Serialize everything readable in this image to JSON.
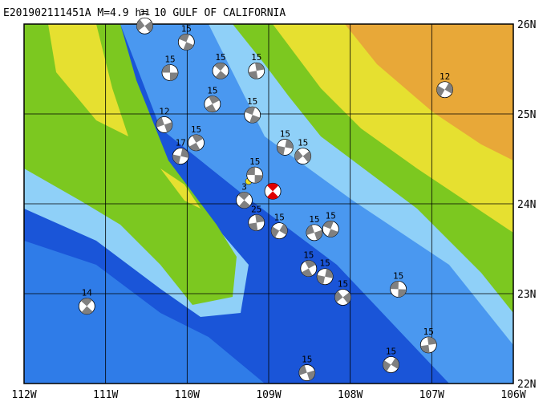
{
  "title": "E201902111451A M=4.9 h= 10 GULF OF CALIFORNIA",
  "longitude_labels": [
    "112W",
    "111W",
    "110W",
    "109W",
    "108W",
    "107W",
    "106W"
  ],
  "latitude_labels": [
    "26N",
    "25N",
    "24N",
    "23N",
    "22N"
  ],
  "main_event": {
    "lon": -108.95,
    "lat": 24.14
  },
  "events": [
    {
      "lon": -110.21,
      "lat": 25.46,
      "depth_label": "15"
    },
    {
      "lon": -109.59,
      "lat": 25.48,
      "depth_label": "15"
    },
    {
      "lon": -109.15,
      "lat": 25.48,
      "depth_label": "15"
    },
    {
      "lon": -106.84,
      "lat": 25.27,
      "depth_label": "12"
    },
    {
      "lon": -110.28,
      "lat": 24.88,
      "depth_label": "12"
    },
    {
      "lon": -109.2,
      "lat": 24.99,
      "depth_label": "15"
    },
    {
      "lon": -109.89,
      "lat": 24.68,
      "depth_label": "15"
    },
    {
      "lon": -108.8,
      "lat": 24.63,
      "depth_label": "15"
    },
    {
      "lon": -108.58,
      "lat": 24.53,
      "depth_label": "15"
    },
    {
      "lon": -109.17,
      "lat": 24.32,
      "depth_label": "15"
    },
    {
      "lon": -109.3,
      "lat": 24.04,
      "depth_label": "3"
    },
    {
      "lon": -109.15,
      "lat": 23.79,
      "depth_label": "25"
    },
    {
      "lon": -108.87,
      "lat": 23.7,
      "depth_label": "15"
    },
    {
      "lon": -108.44,
      "lat": 23.68,
      "depth_label": "15"
    },
    {
      "lon": -108.24,
      "lat": 23.72,
      "depth_label": "15"
    },
    {
      "lon": -108.51,
      "lat": 23.28,
      "depth_label": "15"
    },
    {
      "lon": -108.31,
      "lat": 23.19,
      "depth_label": "15"
    },
    {
      "lon": -108.09,
      "lat": 22.96,
      "depth_label": "15"
    },
    {
      "lon": -107.41,
      "lat": 23.05,
      "depth_label": "15"
    },
    {
      "lon": -111.23,
      "lat": 22.86,
      "depth_label": "14"
    },
    {
      "lon": -107.04,
      "lat": 22.43,
      "depth_label": "15"
    },
    {
      "lon": -107.5,
      "lat": 22.21,
      "depth_label": "15"
    },
    {
      "lon": -108.53,
      "lat": 22.12,
      "depth_label": "15"
    },
    {
      "lon": -110.01,
      "lat": 25.8,
      "depth_label": "15"
    },
    {
      "lon": -109.69,
      "lat": 25.11,
      "depth_label": "15"
    },
    {
      "lon": -110.08,
      "lat": 24.53,
      "depth_label": "17"
    },
    {
      "lon": -110.52,
      "lat": 25.98,
      "depth_label": "31"
    }
  ]
}
